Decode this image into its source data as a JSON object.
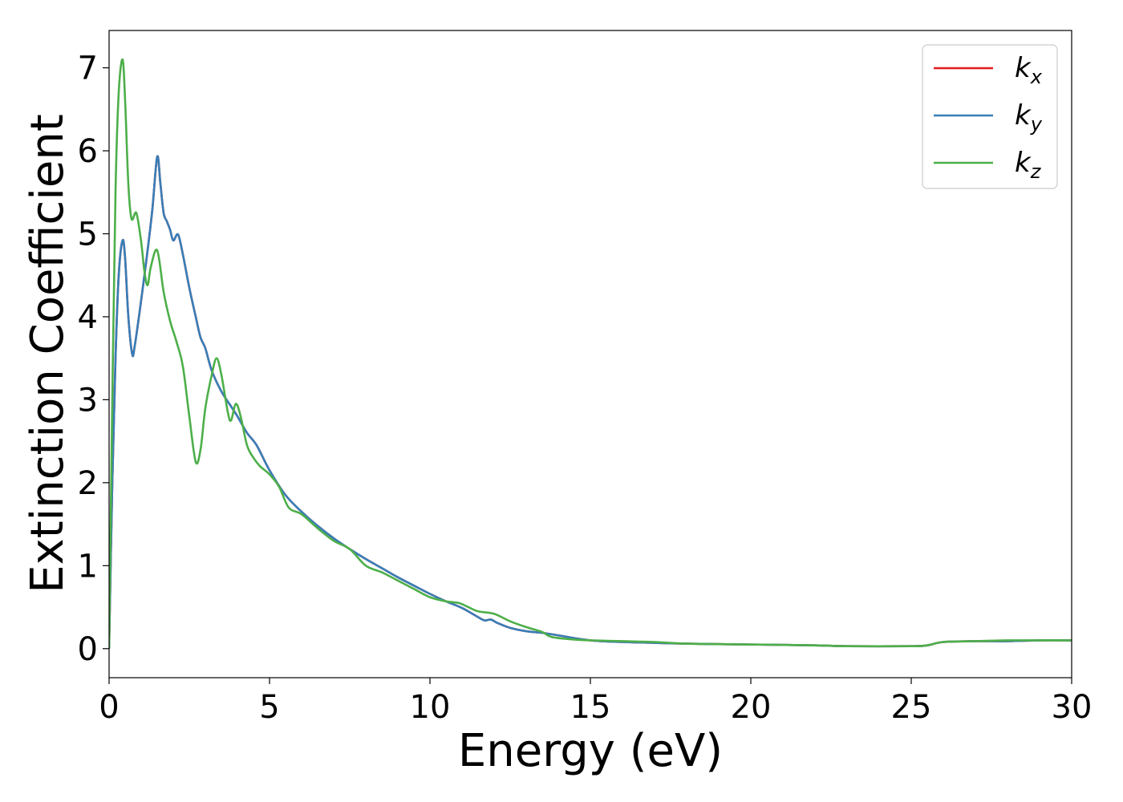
{
  "chart_data": {
    "type": "line",
    "xlabel": "Energy (eV)",
    "ylabel": "Extinction Coefficient",
    "xlim": [
      0,
      30
    ],
    "ylim": [
      -0.35,
      7.45
    ],
    "xticks": [
      0,
      5,
      10,
      15,
      20,
      25,
      30
    ],
    "yticks": [
      0,
      1,
      2,
      3,
      4,
      5,
      6,
      7
    ],
    "grid": false,
    "legend_position": "top-right",
    "series": [
      {
        "name": "k_x",
        "label_base": "k",
        "label_sub": "x",
        "color": "#e41a1c",
        "points": [
          [
            0,
            0
          ],
          [
            0.1,
            2.0
          ],
          [
            0.2,
            3.5
          ],
          [
            0.3,
            4.5
          ],
          [
            0.42,
            4.92
          ],
          [
            0.5,
            4.7
          ],
          [
            0.6,
            4.0
          ],
          [
            0.72,
            3.55
          ],
          [
            0.8,
            3.65
          ],
          [
            1.0,
            4.2
          ],
          [
            1.2,
            4.8
          ],
          [
            1.35,
            5.3
          ],
          [
            1.5,
            5.93
          ],
          [
            1.6,
            5.6
          ],
          [
            1.7,
            5.25
          ],
          [
            1.8,
            5.15
          ],
          [
            1.9,
            5.05
          ],
          [
            2.0,
            4.92
          ],
          [
            2.15,
            4.99
          ],
          [
            2.3,
            4.75
          ],
          [
            2.5,
            4.35
          ],
          [
            2.7,
            4.0
          ],
          [
            2.85,
            3.75
          ],
          [
            3.0,
            3.62
          ],
          [
            3.2,
            3.35
          ],
          [
            3.5,
            3.1
          ],
          [
            3.8,
            2.92
          ],
          [
            4.0,
            2.8
          ],
          [
            4.3,
            2.6
          ],
          [
            4.6,
            2.45
          ],
          [
            5.0,
            2.15
          ],
          [
            5.5,
            1.85
          ],
          [
            6.0,
            1.65
          ],
          [
            6.5,
            1.48
          ],
          [
            7.0,
            1.33
          ],
          [
            7.5,
            1.2
          ],
          [
            8.0,
            1.08
          ],
          [
            8.5,
            0.97
          ],
          [
            9.0,
            0.86
          ],
          [
            9.5,
            0.76
          ],
          [
            10.0,
            0.66
          ],
          [
            10.5,
            0.57
          ],
          [
            11.0,
            0.49
          ],
          [
            11.5,
            0.38
          ],
          [
            11.7,
            0.34
          ],
          [
            11.9,
            0.35
          ],
          [
            12.1,
            0.31
          ],
          [
            12.5,
            0.25
          ],
          [
            13.0,
            0.21
          ],
          [
            13.5,
            0.19
          ],
          [
            14.0,
            0.16
          ],
          [
            15.0,
            0.1
          ],
          [
            16.0,
            0.08
          ],
          [
            17.0,
            0.07
          ],
          [
            18.0,
            0.06
          ],
          [
            20.0,
            0.05
          ],
          [
            22.0,
            0.04
          ],
          [
            23.0,
            0.03
          ],
          [
            25.0,
            0.03
          ],
          [
            25.5,
            0.04
          ],
          [
            26.0,
            0.08
          ],
          [
            27.0,
            0.09
          ],
          [
            28.0,
            0.09
          ],
          [
            29.0,
            0.1
          ],
          [
            30.0,
            0.1
          ]
        ]
      },
      {
        "name": "k_y",
        "label_base": "k",
        "label_sub": "y",
        "color": "#377eb8",
        "points": [
          [
            0,
            0
          ],
          [
            0.1,
            2.0
          ],
          [
            0.2,
            3.5
          ],
          [
            0.3,
            4.5
          ],
          [
            0.42,
            4.92
          ],
          [
            0.5,
            4.7
          ],
          [
            0.6,
            4.0
          ],
          [
            0.72,
            3.55
          ],
          [
            0.8,
            3.65
          ],
          [
            1.0,
            4.2
          ],
          [
            1.2,
            4.8
          ],
          [
            1.35,
            5.3
          ],
          [
            1.5,
            5.93
          ],
          [
            1.6,
            5.6
          ],
          [
            1.7,
            5.25
          ],
          [
            1.8,
            5.15
          ],
          [
            1.9,
            5.05
          ],
          [
            2.0,
            4.92
          ],
          [
            2.15,
            4.99
          ],
          [
            2.3,
            4.75
          ],
          [
            2.5,
            4.35
          ],
          [
            2.7,
            4.0
          ],
          [
            2.85,
            3.75
          ],
          [
            3.0,
            3.62
          ],
          [
            3.2,
            3.35
          ],
          [
            3.5,
            3.1
          ],
          [
            3.8,
            2.92
          ],
          [
            4.0,
            2.8
          ],
          [
            4.3,
            2.6
          ],
          [
            4.6,
            2.45
          ],
          [
            5.0,
            2.15
          ],
          [
            5.5,
            1.85
          ],
          [
            6.0,
            1.65
          ],
          [
            6.5,
            1.48
          ],
          [
            7.0,
            1.33
          ],
          [
            7.5,
            1.2
          ],
          [
            8.0,
            1.08
          ],
          [
            8.5,
            0.97
          ],
          [
            9.0,
            0.86
          ],
          [
            9.5,
            0.76
          ],
          [
            10.0,
            0.66
          ],
          [
            10.5,
            0.57
          ],
          [
            11.0,
            0.49
          ],
          [
            11.5,
            0.38
          ],
          [
            11.7,
            0.34
          ],
          [
            11.9,
            0.35
          ],
          [
            12.1,
            0.31
          ],
          [
            12.5,
            0.25
          ],
          [
            13.0,
            0.21
          ],
          [
            13.5,
            0.19
          ],
          [
            14.0,
            0.16
          ],
          [
            15.0,
            0.1
          ],
          [
            16.0,
            0.08
          ],
          [
            17.0,
            0.07
          ],
          [
            18.0,
            0.06
          ],
          [
            20.0,
            0.05
          ],
          [
            22.0,
            0.04
          ],
          [
            23.0,
            0.03
          ],
          [
            25.0,
            0.03
          ],
          [
            25.5,
            0.04
          ],
          [
            26.0,
            0.08
          ],
          [
            27.0,
            0.09
          ],
          [
            28.0,
            0.09
          ],
          [
            29.0,
            0.1
          ],
          [
            30.0,
            0.1
          ]
        ]
      },
      {
        "name": "k_z",
        "label_base": "k",
        "label_sub": "z",
        "color": "#4daf4a",
        "points": [
          [
            0,
            0
          ],
          [
            0.1,
            3.0
          ],
          [
            0.2,
            5.5
          ],
          [
            0.3,
            6.7
          ],
          [
            0.42,
            7.1
          ],
          [
            0.5,
            6.6
          ],
          [
            0.6,
            5.6
          ],
          [
            0.7,
            5.18
          ],
          [
            0.85,
            5.25
          ],
          [
            1.0,
            4.9
          ],
          [
            1.1,
            4.55
          ],
          [
            1.2,
            4.38
          ],
          [
            1.3,
            4.6
          ],
          [
            1.5,
            4.8
          ],
          [
            1.7,
            4.3
          ],
          [
            1.9,
            3.95
          ],
          [
            2.1,
            3.7
          ],
          [
            2.3,
            3.4
          ],
          [
            2.5,
            2.8
          ],
          [
            2.7,
            2.25
          ],
          [
            2.85,
            2.4
          ],
          [
            3.0,
            2.9
          ],
          [
            3.2,
            3.3
          ],
          [
            3.35,
            3.5
          ],
          [
            3.5,
            3.3
          ],
          [
            3.7,
            2.85
          ],
          [
            3.8,
            2.75
          ],
          [
            3.95,
            2.95
          ],
          [
            4.1,
            2.8
          ],
          [
            4.3,
            2.45
          ],
          [
            4.5,
            2.3
          ],
          [
            4.7,
            2.2
          ],
          [
            5.0,
            2.1
          ],
          [
            5.3,
            1.95
          ],
          [
            5.6,
            1.7
          ],
          [
            6.0,
            1.62
          ],
          [
            6.5,
            1.45
          ],
          [
            7.0,
            1.3
          ],
          [
            7.5,
            1.2
          ],
          [
            8.0,
            1.0
          ],
          [
            8.5,
            0.92
          ],
          [
            9.0,
            0.82
          ],
          [
            9.5,
            0.72
          ],
          [
            10.0,
            0.62
          ],
          [
            10.5,
            0.57
          ],
          [
            10.9,
            0.55
          ],
          [
            11.2,
            0.5
          ],
          [
            11.5,
            0.45
          ],
          [
            12.0,
            0.42
          ],
          [
            12.5,
            0.33
          ],
          [
            13.0,
            0.26
          ],
          [
            13.5,
            0.2
          ],
          [
            13.8,
            0.14
          ],
          [
            14.5,
            0.11
          ],
          [
            15.0,
            0.1
          ],
          [
            16.0,
            0.09
          ],
          [
            17.0,
            0.08
          ],
          [
            18.0,
            0.06
          ],
          [
            20.0,
            0.05
          ],
          [
            22.0,
            0.04
          ],
          [
            23.0,
            0.03
          ],
          [
            25.0,
            0.03
          ],
          [
            25.5,
            0.04
          ],
          [
            26.0,
            0.08
          ],
          [
            27.0,
            0.09
          ],
          [
            28.0,
            0.1
          ],
          [
            29.0,
            0.1
          ],
          [
            30.0,
            0.1
          ]
        ]
      }
    ]
  }
}
